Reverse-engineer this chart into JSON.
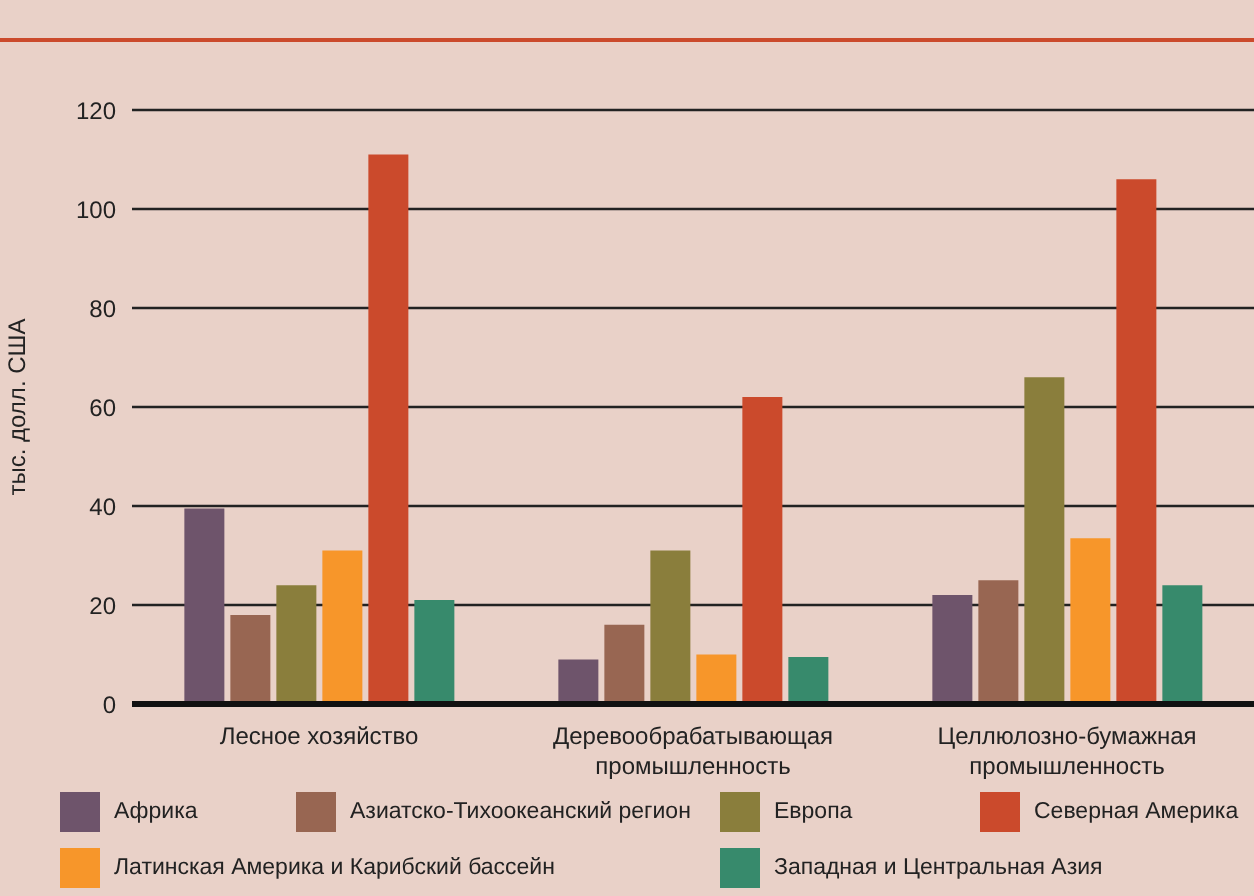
{
  "chart_data": {
    "type": "bar",
    "ylabel": "тыс. долл. США",
    "categories": [
      "Лесное хозяйство",
      "Деревообрабатывающая промышленность",
      "Целлюлозно-бумажная промышленность"
    ],
    "series": [
      {
        "name": "Африка",
        "color": "#6e546b",
        "values": [
          39.5,
          9,
          22
        ]
      },
      {
        "name": "Азиатско-Тихоокеанский регион",
        "color": "#986652",
        "values": [
          18,
          16,
          25
        ]
      },
      {
        "name": "Европа",
        "color": "#8a7e3c",
        "values": [
          24,
          31,
          66
        ]
      },
      {
        "name": "Латинская Америка и Карибский бассейн",
        "color": "#f7962a",
        "values": [
          31,
          10,
          33.5
        ]
      },
      {
        "name": "Северная Америка",
        "color": "#cb4a2c",
        "values": [
          111,
          62,
          106
        ]
      },
      {
        "name": "Западная и Центральная Азия",
        "color": "#378a6c",
        "values": [
          21,
          9.5,
          24
        ]
      }
    ],
    "ylim": [
      0,
      120
    ],
    "yticks": [
      0,
      20,
      40,
      60,
      80,
      100,
      120
    ],
    "grid": "y",
    "legend": "bottom"
  }
}
